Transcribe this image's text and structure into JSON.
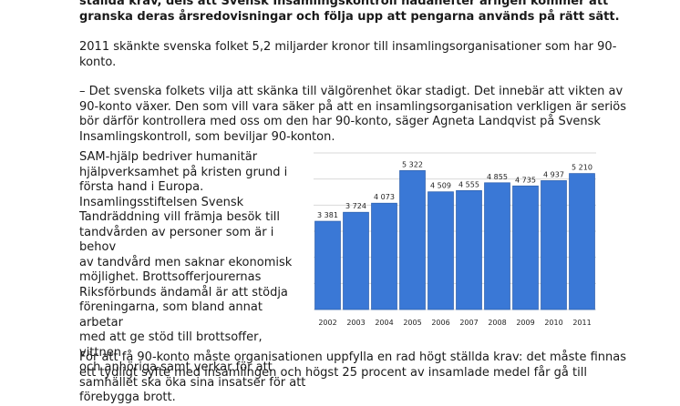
{
  "intro_bold": [
    "ställda krav, dels att Svensk Insamlingskontroll hädanefter årligen kommer att",
    "granska deras årsredovisningar och följa upp att pengarna används på rätt sätt."
  ],
  "paragraph1": [
    "2011 skänkte svenska folket 5,2 miljarder kronor till insamlingsorganisationer som har 90-",
    "konto."
  ],
  "paragraph2": [
    "– Det svenska folkets vilja att skänka till välgörenhet ökar stadigt. Det innebär att vikten av",
    "90-konto växer. Den som vill vara säker på att en insamlingsorganisation verkligen är seriös",
    "bör därför kontrollera med oss om den har 90-konto, säger Agneta Landqvist på Svensk",
    "Insamlingskontroll, som beviljar 90-konton."
  ],
  "side_text": [
    "SAM-hjälp bedriver humanitär",
    "hjälpverksamhet på kristen grund i",
    "första hand i Europa.",
    "Insamlingsstiftelsen Svensk",
    "Tandräddning vill främja besök till",
    "tandvården av personer som är i behov",
    "av tandvård men saknar ekonomisk",
    "möjlighet. Brottsofferjourernas",
    "Riksförbunds ändamål är att stödja",
    "föreningarna, som bland annat arbetar",
    "med att ge stöd till brottsoffer, vittnen",
    "och anhöriga samt verkar för att",
    "samhället ska öka sina insatser för att",
    "förebygga brott."
  ],
  "bottom_text": [
    "För att få 90-konto måste organisationen uppfylla en rad högt ställda krav: det måste finnas",
    "ett tydligt syfte med insamlingen och högst 25 procent av insamlade medel får gå till"
  ],
  "colors": {
    "bar": "#3a78d6",
    "bar_edge": "#2f62b0",
    "grid": "#d9d9d9",
    "text": "#1a1a1a"
  },
  "chart_data": {
    "type": "bar",
    "categories": [
      "2002",
      "2003",
      "2004",
      "2005",
      "2006",
      "2007",
      "2008",
      "2009",
      "2010",
      "2011"
    ],
    "values": [
      3381,
      3724,
      4073,
      5322,
      4509,
      4555,
      4855,
      4735,
      4937,
      5210
    ],
    "value_labels": [
      "3 381",
      "3 724",
      "4 073",
      "5 322",
      "4 509",
      "4 555",
      "4 855",
      "4 735",
      "4 937",
      "5 210"
    ],
    "title": "",
    "xlabel": "",
    "ylabel": "",
    "ylim": [
      0,
      6000
    ],
    "grid": true,
    "legend": "none"
  }
}
